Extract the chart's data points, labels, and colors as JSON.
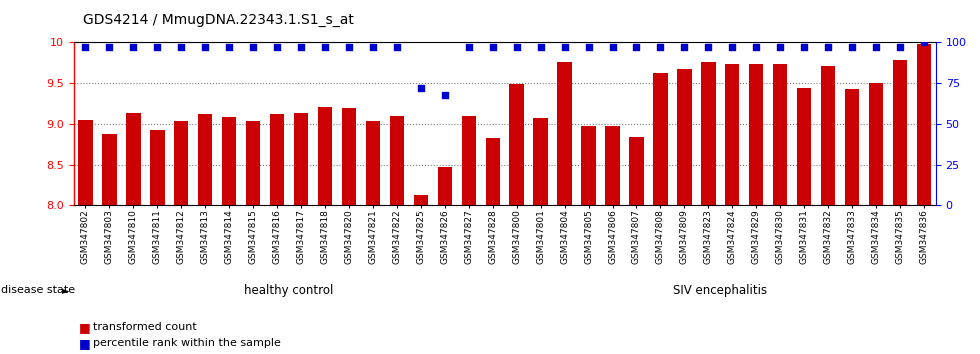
{
  "title": "GDS4214 / MmugDNA.22343.1.S1_s_at",
  "categories": [
    "GSM347802",
    "GSM347803",
    "GSM347810",
    "GSM347811",
    "GSM347812",
    "GSM347813",
    "GSM347814",
    "GSM347815",
    "GSM347816",
    "GSM347817",
    "GSM347818",
    "GSM347820",
    "GSM347821",
    "GSM347822",
    "GSM347825",
    "GSM347826",
    "GSM347827",
    "GSM347828",
    "GSM347800",
    "GSM347801",
    "GSM347804",
    "GSM347805",
    "GSM347806",
    "GSM347807",
    "GSM347808",
    "GSM347809",
    "GSM347823",
    "GSM347824",
    "GSM347829",
    "GSM347830",
    "GSM347831",
    "GSM347832",
    "GSM347833",
    "GSM347834",
    "GSM347835",
    "GSM347836"
  ],
  "bar_values": [
    9.05,
    8.88,
    9.14,
    8.92,
    9.04,
    9.12,
    9.08,
    9.03,
    9.12,
    9.13,
    9.21,
    9.2,
    9.03,
    9.1,
    8.13,
    8.47,
    9.1,
    8.83,
    9.49,
    9.07,
    9.76,
    8.98,
    8.97,
    8.84,
    9.63,
    9.68,
    9.76,
    9.74,
    9.74,
    9.74,
    9.44,
    9.71,
    9.43,
    9.5,
    9.78,
    9.98
  ],
  "percentile_values": [
    97,
    97,
    97,
    97,
    97,
    97,
    97,
    97,
    97,
    97,
    97,
    97,
    97,
    97,
    72,
    68,
    97,
    97,
    97,
    97,
    97,
    97,
    97,
    97,
    97,
    97,
    97,
    97,
    97,
    97,
    97,
    97,
    97,
    97,
    97,
    100
  ],
  "ylim": [
    8.0,
    10.0
  ],
  "yticks_left": [
    8.0,
    8.5,
    9.0,
    9.5,
    10.0
  ],
  "right_yticks": [
    0,
    25,
    50,
    75,
    100
  ],
  "bar_color": "#cc0000",
  "dot_color": "#0000cc",
  "healthy_count": 18,
  "siv_count": 18,
  "healthy_label": "healthy control",
  "siv_label": "SIV encephalitis",
  "disease_label": "disease state",
  "legend_bar": "transformed count",
  "legend_dot": "percentile rank within the sample",
  "healthy_color": "#ccffcc",
  "siv_color": "#33cc33",
  "bg_color": "#ffffff"
}
